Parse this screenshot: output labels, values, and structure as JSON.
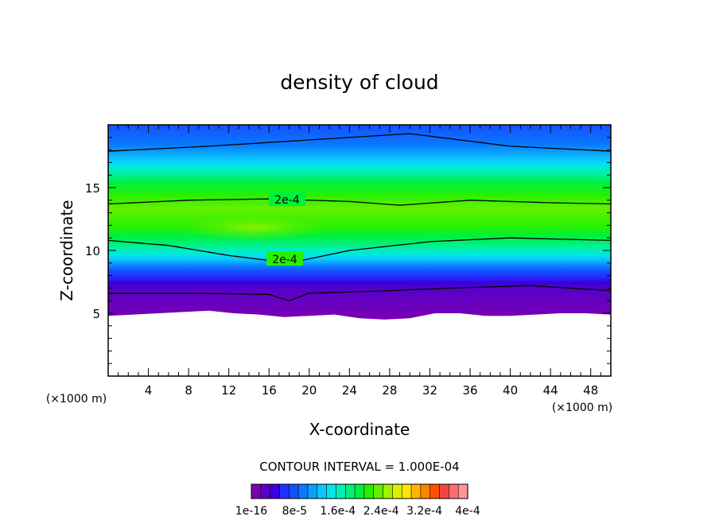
{
  "chart_data": {
    "type": "heatmap",
    "title": "density of cloud",
    "xlabel": "X-coordinate",
    "ylabel": "Z-coordinate",
    "x_unit": "(×1000 m)",
    "z_unit": "(×1000 m)",
    "xlim": [
      0,
      50
    ],
    "ylim": [
      0,
      20
    ],
    "x_ticks": [
      4,
      8,
      12,
      16,
      20,
      24,
      28,
      32,
      36,
      40,
      44,
      48
    ],
    "y_ticks": [
      5,
      10,
      15
    ],
    "contour_interval_text": "CONTOUR INTERVAL = 1.000E-04",
    "contour_label": "2e-4",
    "colorbar_tick_labels": [
      "1e-16",
      "8e-5",
      "1.6e-4",
      "2.4e-4",
      "3.2e-4",
      "4e-4"
    ],
    "colorbar_colors": [
      "#7a00b4",
      "#5a00c8",
      "#3c00dc",
      "#2030ff",
      "#1650ff",
      "#0a78ff",
      "#0aa0ff",
      "#0ac8ff",
      "#00e6e6",
      "#00f0b4",
      "#00f078",
      "#00f03c",
      "#28f000",
      "#64f000",
      "#a0f000",
      "#dcf000",
      "#ffe600",
      "#ffb400",
      "#ff8200",
      "#ff5000",
      "#f04646",
      "#ff6e6e",
      "#ff9696"
    ],
    "z_range": [
      1e-16,
      0.0004
    ],
    "cloud_base_z": [
      4.8,
      4.9,
      5.0,
      5.1,
      5.2,
      5.0,
      4.9,
      4.7,
      4.8,
      4.9,
      4.6,
      4.5,
      4.6,
      5.0,
      5.0,
      4.8,
      4.8,
      4.9,
      5.0,
      5.0,
      4.9
    ],
    "cloud_base_x": [
      0,
      2.5,
      5,
      7.5,
      10,
      12.5,
      15,
      17.5,
      20,
      22.5,
      25,
      27.5,
      30,
      32.5,
      35,
      37.5,
      40,
      42.5,
      45,
      47.5,
      50
    ],
    "contour_lines": [
      {
        "x": [
          0,
          10,
          20,
          30,
          40,
          50
        ],
        "z": [
          17.9,
          18.3,
          18.8,
          19.3,
          18.3,
          17.9
        ]
      },
      {
        "x": [
          0,
          8,
          16,
          24,
          29,
          36,
          44,
          50
        ],
        "z": [
          13.7,
          14.0,
          14.1,
          13.9,
          13.6,
          14.0,
          13.8,
          13.7
        ]
      },
      {
        "x": [
          0,
          6,
          12,
          18,
          24,
          32,
          40,
          50
        ],
        "z": [
          10.8,
          10.4,
          9.6,
          9.0,
          10.0,
          10.7,
          11.0,
          10.8
        ]
      },
      {
        "x": [
          0,
          8,
          16,
          18,
          20,
          28,
          34,
          42,
          50
        ],
        "z": [
          6.6,
          6.6,
          6.5,
          6.0,
          6.6,
          6.8,
          7.0,
          7.2,
          6.8
        ]
      }
    ]
  }
}
